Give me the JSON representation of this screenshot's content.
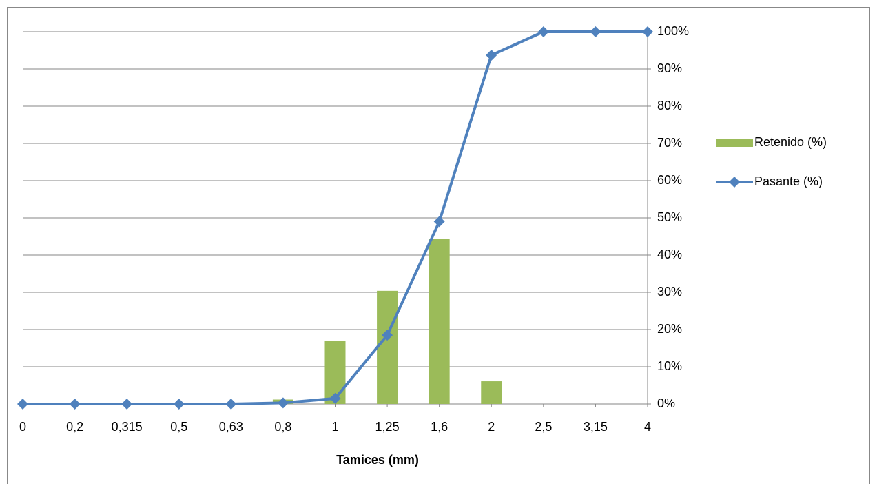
{
  "chart_data": {
    "type": "bar",
    "x_label": "Tamices (mm)",
    "categories": [
      "0",
      "0,2",
      "0,315",
      "0,5",
      "0,63",
      "0,8",
      "1",
      "1,25",
      "1,6",
      "2",
      "2,5",
      "3,15",
      "4"
    ],
    "series": [
      {
        "name": "Retenido (%)",
        "type": "bar",
        "color": "#9bbb59",
        "values": [
          0,
          0,
          0,
          0,
          0,
          1.2,
          16.9,
          30.4,
          44.3,
          6.1,
          0,
          0,
          0
        ]
      },
      {
        "name": "Pasante (%)",
        "type": "line",
        "color": "#4f81bd",
        "values": [
          0,
          0,
          0,
          0,
          0,
          0.3,
          1.5,
          18.5,
          49,
          93.7,
          100,
          100,
          100
        ]
      }
    ],
    "ylim": [
      0,
      100
    ],
    "yticks": [
      {
        "value": 0,
        "label": "0%"
      },
      {
        "value": 10,
        "label": "10%"
      },
      {
        "value": 20,
        "label": "20%"
      },
      {
        "value": 30,
        "label": "30%"
      },
      {
        "value": 40,
        "label": "40%"
      },
      {
        "value": 50,
        "label": "50%"
      },
      {
        "value": 60,
        "label": "60%"
      },
      {
        "value": 70,
        "label": "70%"
      },
      {
        "value": 80,
        "label": "80%"
      },
      {
        "value": 90,
        "label": "90%"
      },
      {
        "value": 100,
        "label": "100%"
      }
    ],
    "y_axis_side": "right",
    "grid": true,
    "legend": "right"
  }
}
